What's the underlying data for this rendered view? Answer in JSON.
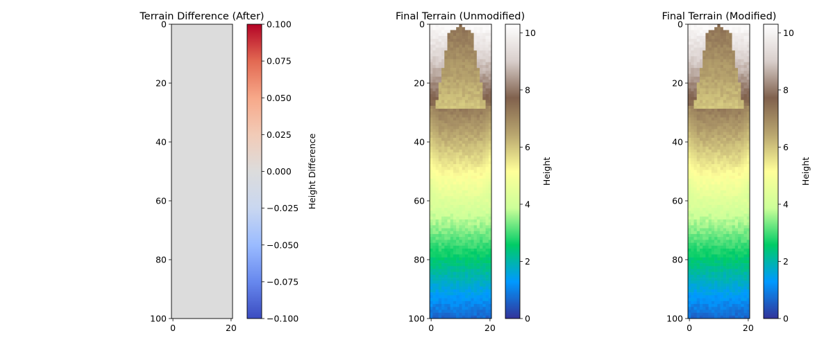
{
  "colormaps": {
    "coolwarm": [
      "#3b4cc0",
      "#6788ee",
      "#9abbff",
      "#c9d7f0",
      "#dcdcdc",
      "#f2cbb7",
      "#f7a889",
      "#e26952",
      "#b40426"
    ],
    "terrain": [
      "#333399",
      "#0099ff",
      "#00cc66",
      "#ccff99",
      "#ffff99",
      "#b9a66f",
      "#80614d",
      "#d9cfcc",
      "#ffffff"
    ]
  },
  "chart_data": [
    {
      "type": "heatmap",
      "title": "Terrain Difference (After)",
      "colormap": "coolwarm",
      "grid_size": [
        21,
        101
      ],
      "xlim": [
        0,
        20
      ],
      "ylim": [
        100,
        0
      ],
      "x_ticks": [
        0,
        20
      ],
      "y_ticks": [
        0,
        20,
        40,
        60,
        80,
        100
      ],
      "value_field": "constant",
      "constant_value": 0,
      "colorbar": {
        "label": "Height Difference",
        "range": [
          -0.1,
          0.1
        ],
        "ticks": [
          -0.1,
          -0.075,
          -0.05,
          -0.025,
          0.0,
          0.025,
          0.05,
          0.075,
          0.1
        ],
        "tick_labels": [
          "−0.100",
          "−0.075",
          "−0.050",
          "−0.025",
          "0.000",
          "0.025",
          "0.050",
          "0.075",
          "0.100"
        ]
      }
    },
    {
      "type": "heatmap",
      "title": "Final Terrain (Unmodified)",
      "colormap": "terrain",
      "grid_size": [
        21,
        101
      ],
      "xlim": [
        0,
        20
      ],
      "ylim": [
        100,
        0
      ],
      "x_ticks": [
        0,
        20
      ],
      "y_ticks": [
        0,
        20,
        40,
        60,
        80,
        100
      ],
      "value_field": "terrain",
      "colorbar": {
        "label": "Height",
        "range": [
          0,
          10.3
        ],
        "ticks": [
          0,
          2,
          4,
          6,
          8,
          10
        ],
        "tick_labels": [
          "0",
          "2",
          "4",
          "6",
          "8",
          "10"
        ]
      }
    },
    {
      "type": "heatmap",
      "title": "Final Terrain (Modified)",
      "colormap": "terrain",
      "grid_size": [
        21,
        101
      ],
      "xlim": [
        0,
        20
      ],
      "ylim": [
        100,
        0
      ],
      "x_ticks": [
        0,
        20
      ],
      "y_ticks": [
        0,
        20,
        40,
        60,
        80,
        100
      ],
      "value_field": "terrain",
      "colorbar": {
        "label": "Height",
        "range": [
          0,
          10.3
        ],
        "ticks": [
          0,
          2,
          4,
          6,
          8,
          10
        ],
        "tick_labels": [
          "0",
          "2",
          "4",
          "6",
          "8",
          "10"
        ]
      }
    }
  ]
}
